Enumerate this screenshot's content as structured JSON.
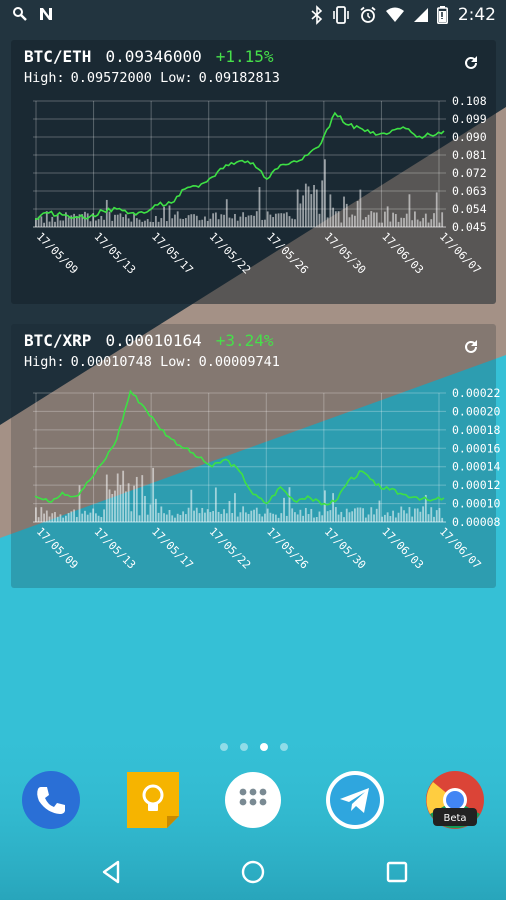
{
  "status_bar": {
    "time": "2:42",
    "icons_left": [
      "search-icon",
      "n-notification-icon"
    ],
    "icons_right": [
      "bluetooth-icon",
      "vibrate-icon",
      "alarm-icon",
      "wifi-icon",
      "signal-icon",
      "battery-icon"
    ]
  },
  "widgets": [
    {
      "pair": "BTC/ETH",
      "price": "0.09346000",
      "change": "+1.15%",
      "high_label": "High:",
      "high_value": "0.09572000",
      "low_label": "Low:",
      "low_value": "0.09182813",
      "y_ticks": [
        "0.108",
        "0.099",
        "0.090",
        "0.081",
        "0.072",
        "0.063",
        "0.054",
        "0.045"
      ],
      "x_ticks": [
        "17/05/09",
        "17/05/13",
        "17/05/17",
        "17/05/22",
        "17/05/26",
        "17/05/30",
        "17/06/03",
        "17/06/07"
      ],
      "chart_data": {
        "type": "line",
        "ylim": [
          0.045,
          0.108
        ],
        "x": [
          "17/05/09",
          "17/05/10",
          "17/05/11",
          "17/05/12",
          "17/05/13",
          "17/05/14",
          "17/05/15",
          "17/05/16",
          "17/05/17",
          "17/05/18",
          "17/05/19",
          "17/05/20",
          "17/05/21",
          "17/05/22",
          "17/05/23",
          "17/05/24",
          "17/05/25",
          "17/05/26",
          "17/05/27",
          "17/05/28",
          "17/05/29",
          "17/05/30",
          "17/05/31",
          "17/06/01",
          "17/06/02",
          "17/06/03",
          "17/06/04",
          "17/06/05",
          "17/06/06",
          "17/06/07",
          "17/06/08"
        ],
        "values": [
          0.049,
          0.052,
          0.051,
          0.05,
          0.05,
          0.053,
          0.054,
          0.052,
          0.052,
          0.056,
          0.057,
          0.064,
          0.065,
          0.07,
          0.076,
          0.078,
          0.077,
          0.069,
          0.076,
          0.078,
          0.081,
          0.087,
          0.102,
          0.096,
          0.094,
          0.091,
          0.092,
          0.095,
          0.09,
          0.091,
          0.093
        ]
      }
    },
    {
      "pair": "BTC/XRP",
      "price": "0.00010164",
      "change": "+3.24%",
      "high_label": "High:",
      "high_value": "0.00010748",
      "low_label": "Low:",
      "low_value": "0.00009741",
      "y_ticks": [
        "0.00022",
        "0.00020",
        "0.00018",
        "0.00016",
        "0.00014",
        "0.00012",
        "0.00010",
        "0.00008"
      ],
      "x_ticks": [
        "17/05/09",
        "17/05/13",
        "17/05/17",
        "17/05/22",
        "17/05/26",
        "17/05/30",
        "17/06/03",
        "17/06/07"
      ],
      "chart_data": {
        "type": "line",
        "ylim": [
          8e-05,
          0.00022
        ],
        "x": [
          "17/05/09",
          "17/05/10",
          "17/05/11",
          "17/05/12",
          "17/05/13",
          "17/05/14",
          "17/05/15",
          "17/05/16",
          "17/05/17",
          "17/05/18",
          "17/05/19",
          "17/05/20",
          "17/05/21",
          "17/05/22",
          "17/05/23",
          "17/05/24",
          "17/05/25",
          "17/05/26",
          "17/05/27",
          "17/05/28",
          "17/05/29",
          "17/05/30",
          "17/05/31",
          "17/06/01",
          "17/06/02",
          "17/06/03",
          "17/06/04",
          "17/06/05",
          "17/06/06",
          "17/06/07",
          "17/06/08"
        ],
        "values": [
          0.000108,
          0.000102,
          0.000112,
          0.000108,
          0.000125,
          0.000145,
          0.00017,
          0.000222,
          0.000205,
          0.000185,
          0.00017,
          0.00016,
          0.00015,
          0.00014,
          0.000148,
          0.000135,
          0.00011,
          0.0001,
          0.000118,
          0.000103,
          0.000108,
          9.9e-05,
          0.000102,
          0.000125,
          0.000135,
          0.00012,
          0.000115,
          0.00011,
          0.000107,
          0.000103,
          0.000106
        ]
      }
    }
  ],
  "page_dots": {
    "count": 4,
    "active": 2
  },
  "dock_apps": [
    "phone-app-icon",
    "keep-app-icon",
    "app-drawer-icon",
    "telegram-app-icon",
    "chrome-beta-app-icon"
  ],
  "chrome_badge": "Beta",
  "nav": [
    "back-button",
    "home-button",
    "recents-button"
  ]
}
